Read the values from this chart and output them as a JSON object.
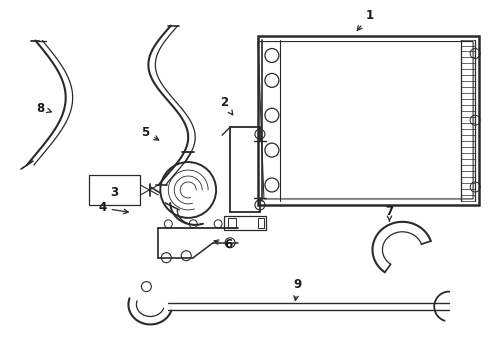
{
  "background_color": "#ffffff",
  "line_color": "#2a2a2a",
  "line_width": 1.4,
  "label_color": "#1a1a1a",
  "label_fontsize": 8.5,
  "figsize": [
    4.89,
    3.6
  ],
  "dpi": 100
}
